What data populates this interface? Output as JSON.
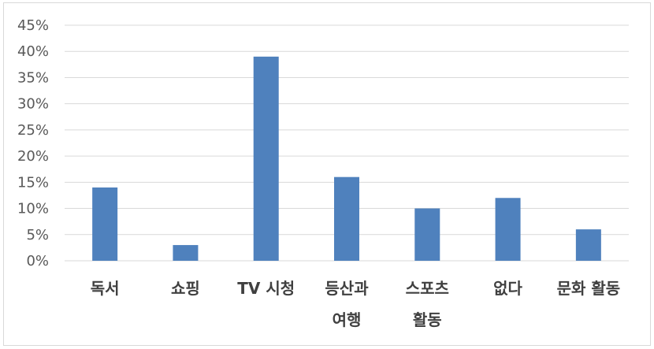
{
  "chart_data": {
    "type": "bar",
    "title": "",
    "xlabel": "",
    "ylabel": "",
    "categories": [
      [
        "독서"
      ],
      [
        "쇼핑"
      ],
      [
        "TV 시청"
      ],
      [
        "등산과",
        "여행"
      ],
      [
        "스포츠",
        "활동"
      ],
      [
        "없다"
      ],
      [
        "문화 활동"
      ]
    ],
    "values": [
      14,
      3,
      39,
      16,
      10,
      12,
      6
    ],
    "ylim": [
      0,
      45
    ],
    "yticks": [
      0,
      5,
      10,
      15,
      20,
      25,
      30,
      35,
      40,
      45
    ],
    "ytick_labels": [
      "0%",
      "5%",
      "10%",
      "15%",
      "20%",
      "25%",
      "30%",
      "35%",
      "40%",
      "45%"
    ],
    "grid": true,
    "legend": "none",
    "colors": {
      "bar": "#4f81bd",
      "grid": "#d9d9d9",
      "border": "#d9d9d9"
    }
  }
}
